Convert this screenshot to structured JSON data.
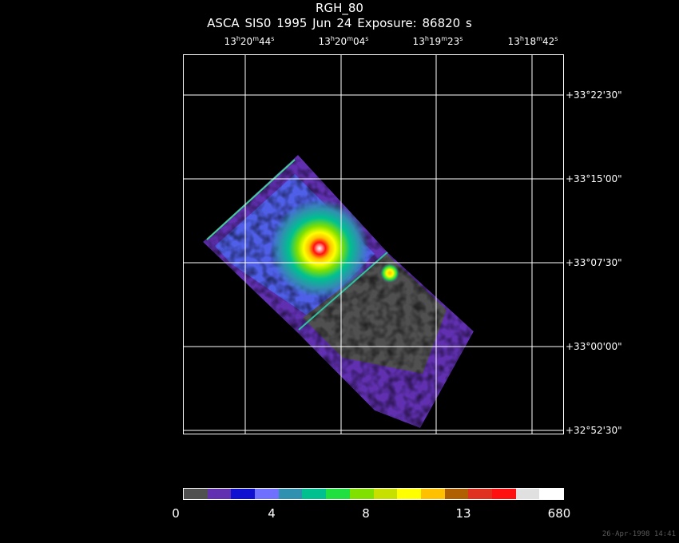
{
  "header": {
    "object": "RGH_80",
    "subtitle": "ASCA SIS0   1995 Jun 24   Exposure: 86820 s"
  },
  "ra_ticks": [
    {
      "h": "13",
      "m": "20",
      "s": "44"
    },
    {
      "h": "13",
      "m": "20",
      "s": "04"
    },
    {
      "h": "13",
      "m": "19",
      "s": "23"
    },
    {
      "h": "13",
      "m": "18",
      "s": "42"
    }
  ],
  "dec_ticks": [
    "+33°22'30\"",
    "+33°15'00\"",
    "+33°07'30\"",
    "+33°00'00\"",
    "+32°52'30\""
  ],
  "colorbar": {
    "colors": [
      "#505050",
      "#6030b0",
      "#1010d0",
      "#7070ff",
      "#3090b0",
      "#00c090",
      "#20e040",
      "#80e000",
      "#c8e000",
      "#ffff00",
      "#ffc000",
      "#b06000",
      "#e03020",
      "#ff1010",
      "#e0e0e0",
      "#ffffff"
    ],
    "labels": [
      "0",
      "4",
      "8",
      "13",
      "680"
    ]
  },
  "timestamp": "26-Apr-1998 14:41"
}
